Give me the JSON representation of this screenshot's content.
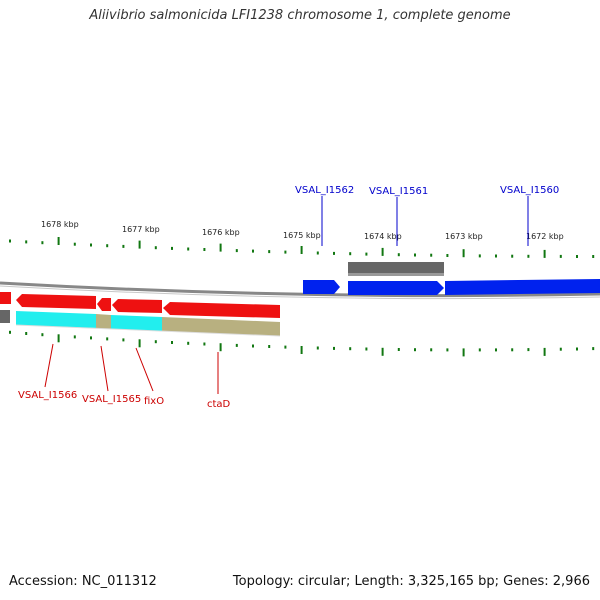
{
  "title": "Aliivibrio salmonicida LFI1238 chromosome 1, complete genome",
  "footer": {
    "accession": "Accession: NC_011312",
    "summary": "Topology: circular; Length: 3,325,165 bp; Genes: 2,966"
  },
  "scale_labels": [
    "1678 kbp",
    "1677 kbp",
    "1676 kbp",
    "1675 kbp",
    "1674 kbp",
    "1673 kbp",
    "1672 kbp"
  ],
  "gene_labels_top": [
    "VSAL_I1562",
    "VSAL_I1561",
    "VSAL_I1560"
  ],
  "gene_labels_bottom": [
    "VSAL_I1566",
    "VSAL_I1565",
    "fixO",
    "ctaD"
  ],
  "colors": {
    "forward_gene": "#0022ee",
    "reverse_gene": "#ee1111",
    "cds_gray": "#666666",
    "feature_cyan": "#22eeee",
    "feature_khaki": "#b8b080",
    "tick_green": "#117711",
    "backbone": "#808080"
  }
}
